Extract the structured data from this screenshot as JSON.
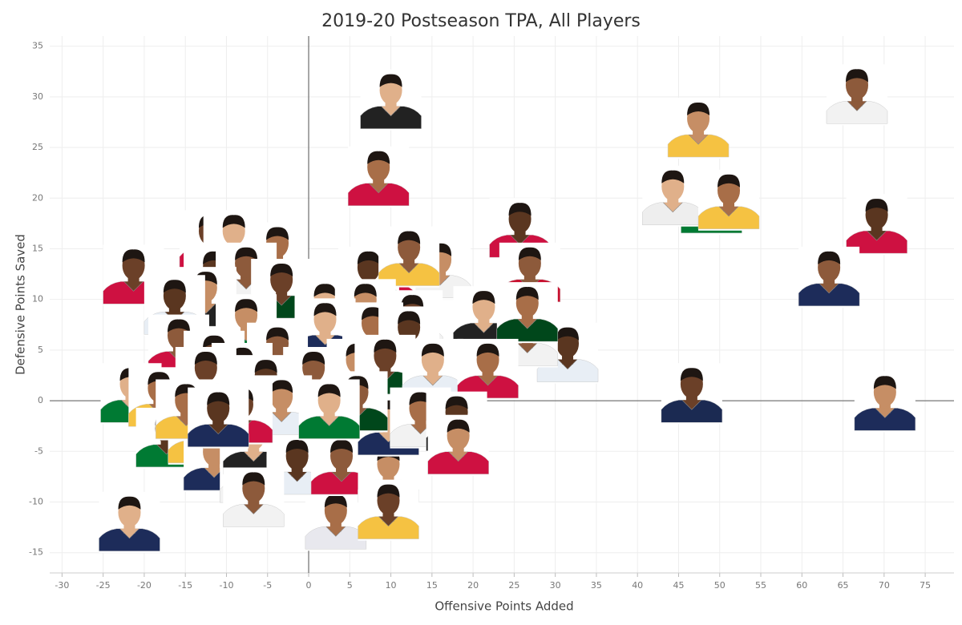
{
  "chart_data": {
    "type": "scatter",
    "title": "2019-20 Postseason TPA, All Players",
    "x_label": "Offensive Points Added",
    "y_label": "Defensive Points Saved",
    "xlim": [
      -31.5,
      78.5
    ],
    "ylim": [
      -17,
      36
    ],
    "xticks": [
      -30,
      -25,
      -20,
      -15,
      -10,
      -5,
      0,
      5,
      10,
      15,
      20,
      25,
      30,
      35,
      40,
      45,
      50,
      55,
      60,
      65,
      70,
      75
    ],
    "yticks": [
      -15,
      -10,
      -5,
      0,
      5,
      10,
      15,
      20,
      25,
      30,
      35
    ],
    "grid": true,
    "x": [
      66.7,
      47.4,
      49.0,
      44.3,
      51.1,
      69.1,
      63.3,
      70.1,
      46.6,
      10.0,
      8.5,
      25.7,
      26.9,
      16.0,
      -21.3,
      -21.8,
      3.3,
      31.5,
      26.6,
      21.6,
      -12.0,
      -9.1,
      -3.8,
      -11.5,
      -7.6,
      -12.5,
      -3.3,
      2.0,
      9.3,
      7.3,
      12.2,
      6.9,
      12.6,
      21.3,
      26.6,
      -16.3,
      -15.8,
      -7.6,
      -11.5,
      2.0,
      7.8,
      12.2,
      -3.8,
      -8.1,
      -12.5,
      -21.6,
      -18.2,
      -5.2,
      0.6,
      5.9,
      9.3,
      15.1,
      21.8,
      -17.3,
      -13.4,
      -11.5,
      -7.1,
      -6.7,
      -1.4,
      -1.4,
      4.0,
      9.7,
      9.7,
      9.7,
      13.6,
      18.0,
      5.9,
      -3.3,
      -8.1,
      2.5,
      -14.9,
      -11.0,
      -6.7,
      18.2
    ],
    "y": [
      30.2,
      26.9,
      19.4,
      20.2,
      19.8,
      17.4,
      12.2,
      -0.1,
      0.7,
      29.7,
      22.1,
      17.0,
      12.6,
      13.0,
      12.4,
      -12.0,
      -11.8,
      4.7,
      6.3,
      4.7,
      15.8,
      15.8,
      14.6,
      12.2,
      12.6,
      10.2,
      11.0,
      9.0,
      12.2,
      12.2,
      14.2,
      9.0,
      7.9,
      8.3,
      8.7,
      9.4,
      5.5,
      7.5,
      3.9,
      7.1,
      6.7,
      6.3,
      4.7,
      2.7,
      2.3,
      0.7,
      0.3,
      1.5,
      2.3,
      3.1,
      3.5,
      3.1,
      3.1,
      -3.7,
      -3.3,
      -6.0,
      -7.2,
      -4.4,
      -3.7,
      -6.4,
      -6.4,
      -7.2,
      -10.8,
      -2.5,
      -1.7,
      -2.1,
      -0.1,
      -0.5,
      -1.3,
      -0.9,
      -0.9,
      -1.7,
      -9.6,
      -4.4
    ],
    "colors": [
      "#f2f2f2",
      "#f5c242",
      "#007a33",
      "#eeeeee",
      "#f5c242",
      "#ce1141",
      "#1d2c5a",
      "#1d2c5a",
      "#1b2a52",
      "#222222",
      "#ce1141",
      "#ce1141",
      "#c8102e",
      "#f2f2f2",
      "#ce1141",
      "#1d2c5a",
      "#e8e8ee",
      "#e8eef5",
      "#f2f2f2",
      "#6b7a8f",
      "#ce1141",
      "#007a33",
      "#f5c242",
      "#1d2c5a",
      "#f2f2f2",
      "#222222",
      "#00471b",
      "#e8eef5",
      "#ce1141",
      "#007a33",
      "#f5c242",
      "#1d2c5a",
      "#f2f2f2",
      "#222222",
      "#00471b",
      "#e8eef5",
      "#ce1141",
      "#007a33",
      "#f5c242",
      "#1d2c5a",
      "#f2f2f2",
      "#222222",
      "#00471b",
      "#e8eef5",
      "#ce1141",
      "#007a33",
      "#f5c242",
      "#1d2c5a",
      "#f2f2f2",
      "#222222",
      "#00471b",
      "#e8eef5",
      "#ce1141",
      "#007a33",
      "#f5c242",
      "#1d2c5a",
      "#f2f2f2",
      "#222222",
      "#00471b",
      "#e8eef5",
      "#ce1141",
      "#007a33",
      "#f5c242",
      "#1d2c5a",
      "#f2f2f2",
      "#222222",
      "#00471b",
      "#e8eef5",
      "#ce1141",
      "#007a33",
      "#f5c242",
      "#1d2c5a",
      "#f2f2f2",
      "#ce1141"
    ]
  }
}
